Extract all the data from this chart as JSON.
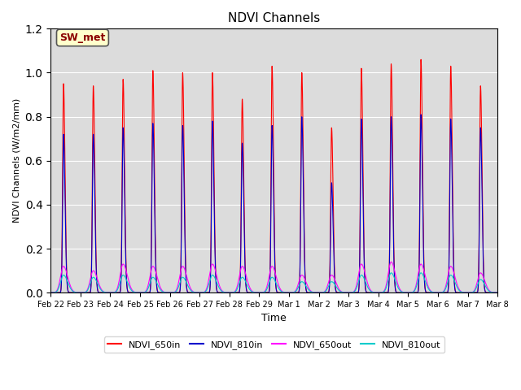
{
  "title": "NDVI Channels",
  "xlabel": "Time",
  "ylabel": "NDVI Channels (W/m2/mm)",
  "ylim": [
    0,
    1.2
  ],
  "background_color": "#dcdcdc",
  "annotation_text": "SW_met",
  "annotation_bg": "#ffffcc",
  "annotation_border": "#333333",
  "legend_labels": [
    "NDVI_650in",
    "NDVI_810in",
    "NDVI_650out",
    "NDVI_810out"
  ],
  "line_colors": [
    "#ff0000",
    "#0000cc",
    "#ff00ff",
    "#00cccc"
  ],
  "peaks_650in": [
    0.95,
    0.94,
    0.97,
    1.01,
    1.0,
    1.0,
    0.88,
    1.03,
    1.0,
    0.75,
    1.02,
    1.04,
    1.06,
    1.03,
    0.94
  ],
  "peaks_810in": [
    0.72,
    0.72,
    0.75,
    0.77,
    0.76,
    0.78,
    0.68,
    0.76,
    0.8,
    0.5,
    0.79,
    0.8,
    0.81,
    0.79,
    0.75
  ],
  "peaks_650out": [
    0.12,
    0.1,
    0.13,
    0.12,
    0.12,
    0.13,
    0.12,
    0.12,
    0.08,
    0.08,
    0.13,
    0.14,
    0.13,
    0.12,
    0.09
  ],
  "peaks_810out": [
    0.08,
    0.07,
    0.08,
    0.07,
    0.07,
    0.08,
    0.07,
    0.07,
    0.05,
    0.05,
    0.08,
    0.09,
    0.09,
    0.08,
    0.06
  ],
  "tick_labels": [
    "Feb 22",
    "Feb 23",
    "Feb 24",
    "Feb 25",
    "Feb 26",
    "Feb 27",
    "Feb 28",
    "Feb 29",
    "Mar 1",
    "Mar 2",
    "Mar 3",
    "Mar 4",
    "Mar 5",
    "Mar 6",
    "Mar 7",
    "Mar 8"
  ],
  "yticks": [
    0.0,
    0.2,
    0.4,
    0.6,
    0.8,
    1.0,
    1.2
  ],
  "figsize": [
    6.4,
    4.8
  ],
  "dpi": 100
}
